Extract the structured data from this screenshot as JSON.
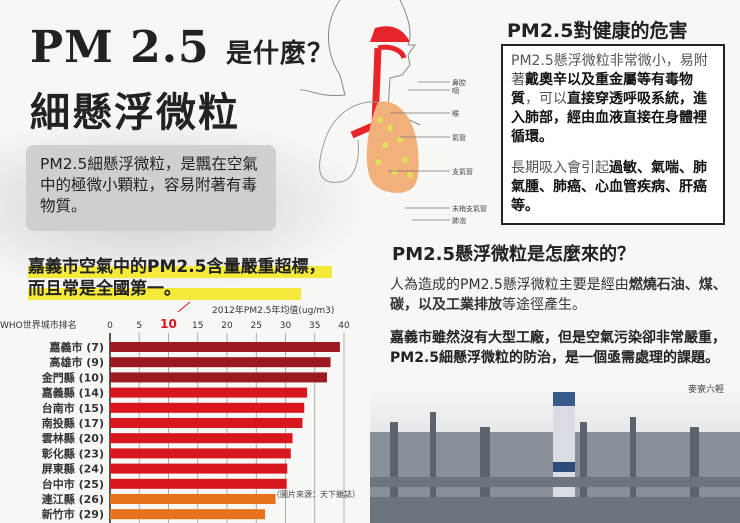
{
  "title": {
    "main": "PM 2.5",
    "question": "是什麼？",
    "sub": "細懸浮微粒"
  },
  "intro": "PM2.5細懸浮微粒，是飄在空氣中的極微小顆粒，容易附著有毒物質。",
  "highlight": {
    "line1": "嘉義市空氣中的PM2.5含量嚴重超標，",
    "line2": "而且常是全國第一。"
  },
  "anatomy_labels": [
    "鼻腔",
    "咽",
    "喉",
    "氣管",
    "支氣管",
    "末梢支氣管",
    "肺泡"
  ],
  "health": {
    "heading": "PM2.5對健康的危害",
    "p1_a": "PM2.5懸浮微粒非常微小，易附著",
    "p1_b": "戴奧辛以及重金屬等有毒物質",
    "p1_c": "，可以",
    "p1_d": "直接穿透呼吸系統，進入肺部，經由血液直接在身體裡循環。",
    "p2_a": "長期吸入會引起",
    "p2_b": "過敏、氣喘、肺氣腫、肺癌、心血管疾病、肝癌等。"
  },
  "origin": {
    "heading": "PM2.5懸浮微粒是怎麼來的？",
    "p1_a": "人為造成的PM2.5懸浮微粒主要是經由",
    "p1_b": "燃燒石油、煤、碳，以及工業排放",
    "p1_c": "等途徑產生。",
    "p2": "嘉義市雖然沒有大型工廠，但是空氣污染卻非常嚴重，PM2.5細懸浮微粒的防治，是一個亟需處理的課題。",
    "credit": "麥寮六輕"
  },
  "chart_data": {
    "type": "bar",
    "orientation": "horizontal",
    "title": "2012年PM2.5年均值(ug/m3)",
    "ylabel": "WHO世界城市排名",
    "xlim": [
      0,
      40
    ],
    "xticks": [
      0,
      5,
      10,
      15,
      20,
      25,
      30,
      35,
      40
    ],
    "highlight_tick": 10,
    "categories": [
      "嘉義市 (7)",
      "高雄市 (9)",
      "金門縣 (10)",
      "嘉義縣 (14)",
      "台南市 (15)",
      "南投縣 (17)",
      "雲林縣 (20)",
      "彰化縣 (23)",
      "屏東縣 (24)",
      "台中市 (25)",
      "連江縣 (26)",
      "新竹市 (29)"
    ],
    "values": [
      39.3,
      37.7,
      37.1,
      33.7,
      33.2,
      32.9,
      31.2,
      30.9,
      30.3,
      30.2,
      28.3,
      26.5
    ],
    "colors": [
      "#9b1a1f",
      "#9b1a1f",
      "#9b1a1f",
      "#d7161e",
      "#d7161e",
      "#d7161e",
      "#d7161e",
      "#d7161e",
      "#d7161e",
      "#d7161e",
      "#e8711c",
      "#e8711c"
    ],
    "grid": true,
    "source": "（圖片來源：天下雜誌）"
  }
}
